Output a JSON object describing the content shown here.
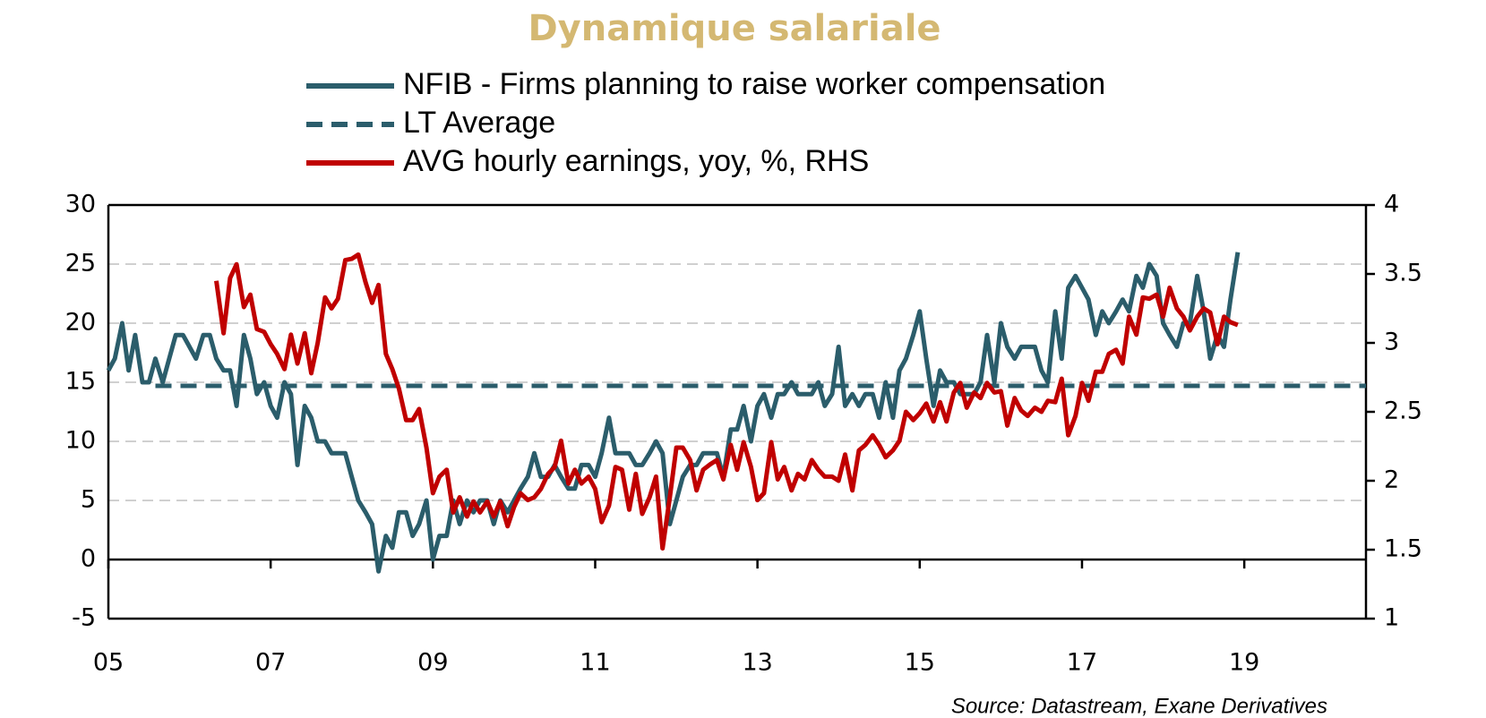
{
  "chart_data": {
    "type": "line",
    "title": "Dynamique salariale",
    "source": "Source: Datastream, Exane Derivatives",
    "xlim": [
      2005,
      2020.5
    ],
    "xticks": [
      {
        "value": 2005,
        "label": "05"
      },
      {
        "value": 2007,
        "label": "07"
      },
      {
        "value": 2009,
        "label": "09"
      },
      {
        "value": 2011,
        "label": "11"
      },
      {
        "value": 2013,
        "label": "13"
      },
      {
        "value": 2015,
        "label": "15"
      },
      {
        "value": 2017,
        "label": "17"
      },
      {
        "value": 2019,
        "label": "19"
      }
    ],
    "ylim": [
      -5,
      30
    ],
    "yticks": [
      -5,
      0,
      5,
      10,
      15,
      20,
      25,
      30
    ],
    "y2lim": [
      1,
      4
    ],
    "y2ticks": [
      1,
      1.5,
      2,
      2.5,
      3,
      3.5,
      4
    ],
    "grid": true,
    "x": [
      2005,
      2005.08,
      2005.17,
      2005.25,
      2005.33,
      2005.42,
      2005.5,
      2005.58,
      2005.67,
      2005.75,
      2005.83,
      2005.92,
      2006,
      2006.08,
      2006.17,
      2006.25,
      2006.33,
      2006.42,
      2006.5,
      2006.58,
      2006.67,
      2006.75,
      2006.83,
      2006.92,
      2007,
      2007.08,
      2007.17,
      2007.25,
      2007.33,
      2007.42,
      2007.5,
      2007.58,
      2007.67,
      2007.75,
      2007.83,
      2007.92,
      2008,
      2008.08,
      2008.17,
      2008.25,
      2008.33,
      2008.42,
      2008.5,
      2008.58,
      2008.67,
      2008.75,
      2008.83,
      2008.92,
      2009,
      2009.08,
      2009.17,
      2009.25,
      2009.33,
      2009.42,
      2009.5,
      2009.58,
      2009.67,
      2009.75,
      2009.83,
      2009.92,
      2010,
      2010.08,
      2010.17,
      2010.25,
      2010.33,
      2010.42,
      2010.5,
      2010.58,
      2010.67,
      2010.75,
      2010.83,
      2010.92,
      2011,
      2011.08,
      2011.17,
      2011.25,
      2011.33,
      2011.42,
      2011.5,
      2011.58,
      2011.67,
      2011.75,
      2011.83,
      2011.92,
      2012,
      2012.08,
      2012.17,
      2012.25,
      2012.33,
      2012.42,
      2012.5,
      2012.58,
      2012.67,
      2012.75,
      2012.83,
      2012.92,
      2013,
      2013.08,
      2013.17,
      2013.25,
      2013.33,
      2013.42,
      2013.5,
      2013.58,
      2013.67,
      2013.75,
      2013.83,
      2013.92,
      2014,
      2014.08,
      2014.17,
      2014.25,
      2014.33,
      2014.42,
      2014.5,
      2014.58,
      2014.67,
      2014.75,
      2014.83,
      2014.92,
      2015,
      2015.08,
      2015.17,
      2015.25,
      2015.33,
      2015.42,
      2015.5,
      2015.58,
      2015.67,
      2015.75,
      2015.83,
      2015.92,
      2016,
      2016.08,
      2016.17,
      2016.25,
      2016.33,
      2016.42,
      2016.5,
      2016.58,
      2016.67,
      2016.75,
      2016.83,
      2016.92,
      2017,
      2017.08,
      2017.17,
      2017.25,
      2017.33,
      2017.42,
      2017.5,
      2017.58,
      2017.67,
      2017.75,
      2017.83,
      2017.92,
      2018,
      2018.08,
      2018.17,
      2018.25,
      2018.33,
      2018.42,
      2018.5,
      2018.58,
      2018.67,
      2018.75,
      2018.83,
      2018.92
    ],
    "series": [
      {
        "name": "NFIB - Firms planning to raise worker compensation",
        "color": "#2b5d6b",
        "dashed": false,
        "values": [
          16,
          17,
          20,
          16,
          19,
          15,
          15,
          17,
          15,
          17,
          19,
          19,
          18,
          17,
          19,
          19,
          17,
          16,
          16,
          13,
          19,
          17,
          14,
          15,
          13,
          12,
          15,
          14,
          8,
          13,
          12,
          10,
          10,
          9,
          9,
          9,
          7,
          5,
          4,
          3,
          -1,
          2,
          1,
          4,
          4,
          2,
          3,
          5,
          0,
          2,
          2,
          5,
          3,
          5,
          4,
          5,
          5,
          3,
          5,
          4,
          5,
          6,
          7,
          9,
          7,
          7,
          8,
          7,
          6,
          6,
          8,
          8,
          7,
          9,
          12,
          9,
          9,
          9,
          8,
          8,
          9,
          10,
          9,
          3,
          5,
          7,
          8,
          8,
          9,
          9,
          9,
          7,
          11,
          11,
          13,
          10,
          13,
          14,
          12,
          14,
          14,
          15,
          14,
          14,
          14,
          15,
          13,
          14,
          18,
          13,
          14,
          13,
          14,
          14,
          12,
          15,
          12,
          16,
          17,
          19,
          21,
          17,
          13,
          16,
          15,
          15,
          14,
          14,
          14,
          15,
          19,
          15,
          20,
          18,
          17,
          18,
          18,
          18,
          16,
          15,
          21,
          17,
          23,
          24,
          23,
          22,
          19,
          21,
          20,
          21,
          22,
          21,
          24,
          23,
          25,
          24,
          20,
          19,
          18,
          20,
          20,
          24,
          21,
          17,
          19,
          18,
          22,
          26
        ]
      },
      {
        "name": "LT Average",
        "color": "#2b5d6b",
        "dashed": true,
        "x": [
          2005.58,
          2020.5
        ],
        "values": [
          14.7,
          14.7
        ]
      },
      {
        "name": "AVG hourly earnings, yoy, %, RHS",
        "color": "#c00000",
        "dashed": false,
        "axis": "y2",
        "values": [
          null,
          null,
          null,
          null,
          null,
          null,
          null,
          null,
          null,
          null,
          null,
          null,
          null,
          null,
          null,
          null,
          3.45,
          3.07,
          3.47,
          3.57,
          3.26,
          3.35,
          3.1,
          3.08,
          2.99,
          2.92,
          2.81,
          3.06,
          2.85,
          3.07,
          2.78,
          3.0,
          3.33,
          3.25,
          3.32,
          3.6,
          3.61,
          3.64,
          3.44,
          3.29,
          3.42,
          2.92,
          2.81,
          2.67,
          2.44,
          2.44,
          2.52,
          2.24,
          1.91,
          2.03,
          2.08,
          1.77,
          1.88,
          1.74,
          1.85,
          1.77,
          1.85,
          1.74,
          1.85,
          1.67,
          1.81,
          1.91,
          1.86,
          1.88,
          1.94,
          2.05,
          2.1,
          2.29,
          1.98,
          2.08,
          1.98,
          2.03,
          1.94,
          1.7,
          1.82,
          2.1,
          2.08,
          1.79,
          2.05,
          1.76,
          1.88,
          2.03,
          1.51,
          1.88,
          2.24,
          2.24,
          2.15,
          1.93,
          2.08,
          2.12,
          2.15,
          2.01,
          2.26,
          2.08,
          2.28,
          2.1,
          1.86,
          1.91,
          2.28,
          2.01,
          2.1,
          1.93,
          2.05,
          2.01,
          2.15,
          2.08,
          2.03,
          2.03,
          2.0,
          2.19,
          1.93,
          2.22,
          2.26,
          2.33,
          2.26,
          2.17,
          2.22,
          2.29,
          2.5,
          2.44,
          2.49,
          2.56,
          2.43,
          2.57,
          2.43,
          2.64,
          2.71,
          2.53,
          2.64,
          2.6,
          2.71,
          2.64,
          2.65,
          2.4,
          2.6,
          2.51,
          2.47,
          2.53,
          2.5,
          2.58,
          2.57,
          2.74,
          2.33,
          2.47,
          2.71,
          2.58,
          2.79,
          2.79,
          2.92,
          2.95,
          2.85,
          3.19,
          3.06,
          3.33,
          3.32,
          3.35,
          3.19,
          3.4,
          3.25,
          3.19,
          3.09,
          3.19,
          3.25,
          3.22,
          2.99,
          3.19,
          3.15,
          3.13
        ]
      }
    ]
  }
}
